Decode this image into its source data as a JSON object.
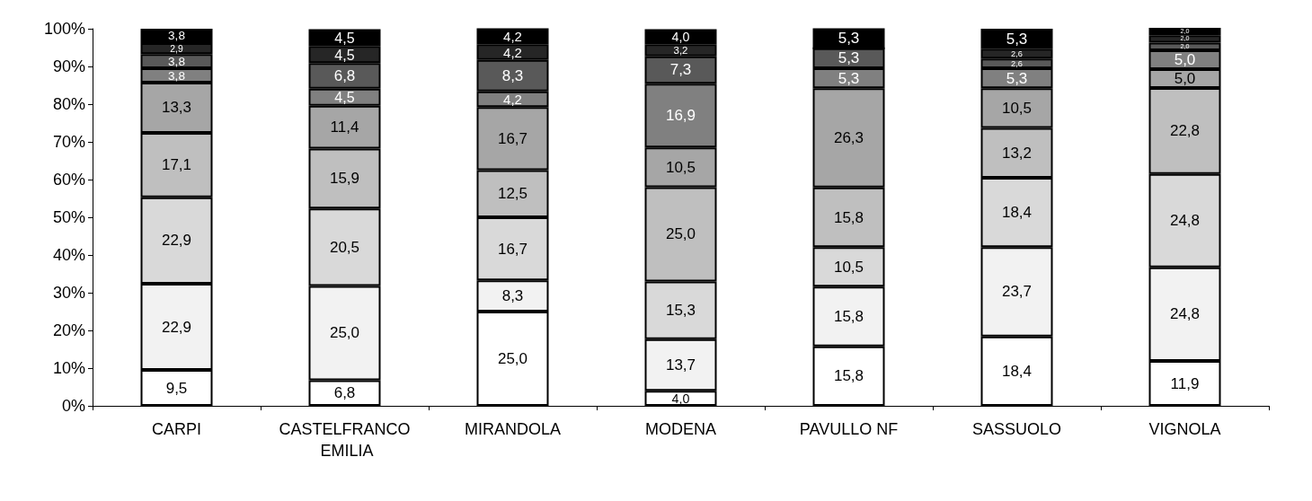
{
  "chart_data": {
    "type": "bar",
    "stacked": true,
    "grid": false,
    "categories": [
      "CARPI",
      "CASTELFRANCO EMILIA",
      "MIRANDOLA",
      "MODENA",
      "PAVULLO NF",
      "SASSUOLO",
      "VIGNOLA"
    ],
    "ylim": [
      0,
      100
    ],
    "yticks": [
      {
        "value": 0,
        "label": "0%"
      },
      {
        "value": 10,
        "label": "10%"
      },
      {
        "value": 20,
        "label": "20%"
      },
      {
        "value": 30,
        "label": "30%"
      },
      {
        "value": 40,
        "label": "40%"
      },
      {
        "value": 50,
        "label": "50%"
      },
      {
        "value": 60,
        "label": "60%"
      },
      {
        "value": 70,
        "label": "70%"
      },
      {
        "value": 80,
        "label": "80%"
      },
      {
        "value": 90,
        "label": "90%"
      },
      {
        "value": 100,
        "label": "100%"
      }
    ],
    "series": [
      {
        "color": "#ffffff",
        "values": [
          9.5,
          6.8,
          25.0,
          4.0,
          15.8,
          18.4,
          11.9
        ],
        "value_labels": [
          "9,5",
          "6,8",
          "25,0",
          "4,0",
          "15,8",
          "18,4",
          "11,9"
        ]
      },
      {
        "color": "#f2f2f2",
        "values": [
          22.9,
          25.0,
          8.3,
          13.7,
          15.8,
          23.7,
          24.8
        ],
        "value_labels": [
          "22,9",
          "25,0",
          "8,3",
          "13,7",
          "15,8",
          "23,7",
          "24,8"
        ]
      },
      {
        "color": "#d9d9d9",
        "values": [
          22.9,
          20.5,
          16.7,
          15.3,
          10.5,
          18.4,
          24.8
        ],
        "value_labels": [
          "22,9",
          "20,5",
          "16,7",
          "15,3",
          "10,5",
          "18,4",
          "24,8"
        ]
      },
      {
        "color": "#bfbfbf",
        "values": [
          17.1,
          15.9,
          12.5,
          25.0,
          15.8,
          13.2,
          22.8
        ],
        "value_labels": [
          "17,1",
          "15,9",
          "12,5",
          "25,0",
          "15,8",
          "13,2",
          "22,8"
        ]
      },
      {
        "color": "#a6a6a6",
        "values": [
          13.3,
          11.4,
          16.7,
          10.5,
          26.3,
          10.5,
          5.0
        ],
        "value_labels": [
          "13,3",
          "11,4",
          "16,7",
          "10,5",
          "26,3",
          "10,5",
          "5,0"
        ]
      },
      {
        "color": "#808080",
        "values": [
          3.8,
          4.5,
          4.2,
          16.9,
          5.3,
          5.3,
          5.0
        ],
        "value_labels": [
          "3,8",
          "4,5",
          "4,2",
          "16,9",
          "5,3",
          "5,3",
          "5,0"
        ]
      },
      {
        "color": "#595959",
        "values": [
          3.8,
          6.8,
          8.3,
          7.3,
          5.3,
          2.6,
          2.0
        ],
        "value_labels": [
          "3,8",
          "6,8",
          "8,3",
          "7,3",
          "5,3",
          "2,6",
          "2,0"
        ]
      },
      {
        "color": "#262626",
        "values": [
          2.9,
          4.5,
          4.2,
          3.2,
          0.0,
          2.6,
          2.0
        ],
        "value_labels": [
          "2,9",
          "4,5",
          "4,2",
          "3,2",
          null,
          "2,6",
          "2,0"
        ]
      },
      {
        "color": "#000000",
        "values": [
          3.8,
          4.5,
          4.2,
          4.0,
          5.3,
          5.3,
          2.0
        ],
        "value_labels": [
          "3,8",
          "4,5",
          "4,2",
          "4,0",
          "5,3",
          "5,3",
          "2,0"
        ]
      }
    ]
  }
}
